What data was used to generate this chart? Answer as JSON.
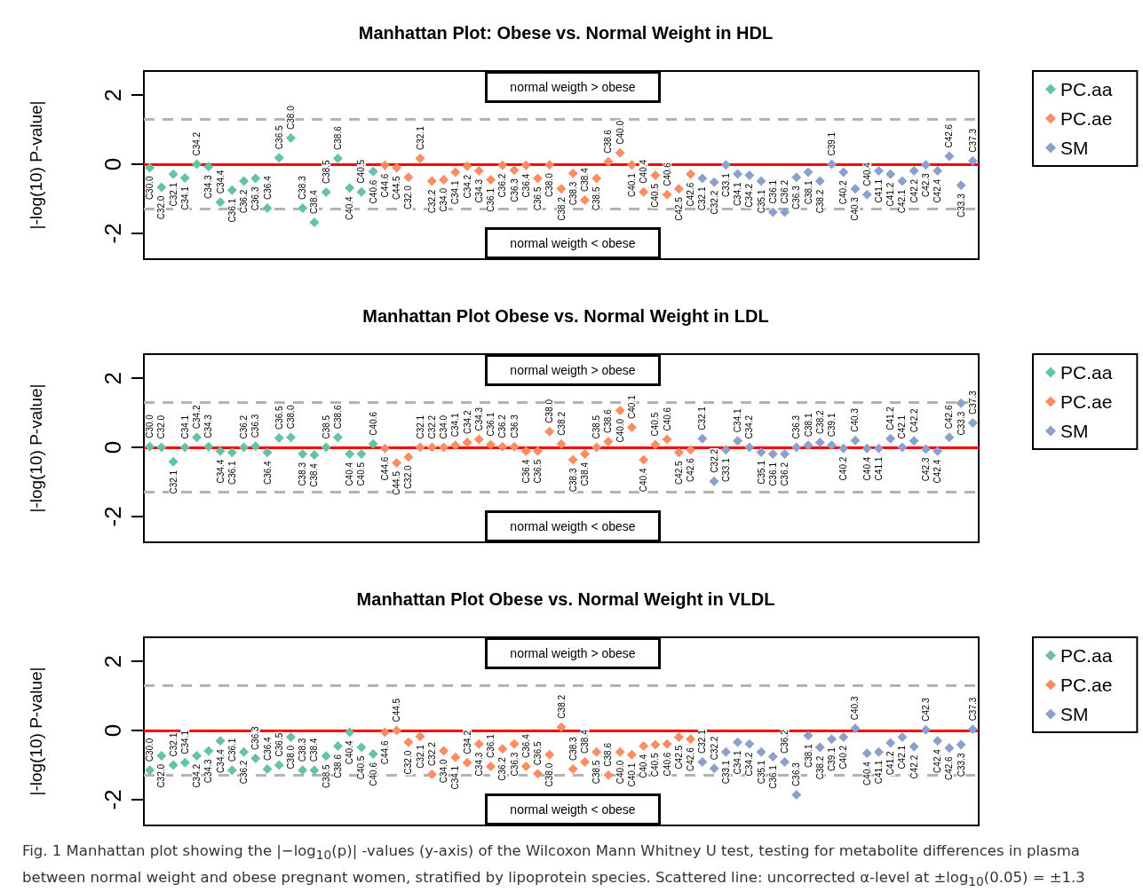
{
  "chart_data": [
    {
      "type": "scatter",
      "title": "Manhattan Plot: Obese vs. Normal Weight in HDL",
      "ylabel": "|-log(10) P-value|",
      "categories": [
        null,
        null,
        null,
        null,
        null,
        null,
        null,
        null,
        null,
        null,
        null,
        null,
        null,
        null,
        null,
        null,
        null,
        null,
        null,
        null,
        null,
        null,
        null,
        null,
        null,
        null,
        null,
        null,
        null,
        null,
        null,
        null,
        null,
        null,
        null,
        null,
        null,
        null,
        null,
        null,
        null,
        null,
        null,
        null,
        null,
        null,
        null,
        null,
        null,
        null,
        null,
        null,
        null,
        null,
        null,
        null,
        null,
        null,
        null,
        null,
        null,
        null,
        null,
        null,
        null,
        null,
        null,
        null,
        null,
        null,
        null
      ],
      "series": [
        {
          "name": "PC.aa",
          "color": "#66c2a5",
          "values": [
            -0.1,
            -0.67,
            -0.29,
            -0.4,
            0.0,
            -0.07,
            -1.1,
            -0.75,
            -0.49,
            -0.41,
            -1.27,
            0.19,
            0.76,
            -1.27,
            -1.68,
            -0.81,
            0.17,
            -0.69,
            -0.8,
            -0.21,
            null,
            null,
            null,
            null,
            null,
            null,
            null,
            null,
            null,
            null,
            null,
            null,
            null,
            null,
            null,
            null,
            null,
            null,
            null,
            null,
            null,
            null,
            null,
            null,
            null,
            null,
            null,
            null,
            null,
            null,
            null,
            null,
            null,
            null,
            null,
            null,
            null,
            null,
            null,
            null,
            null,
            null,
            null,
            null,
            null,
            null,
            null,
            null,
            null,
            null,
            null
          ],
          "value_labels": [
            "C30.0",
            "C32.0",
            "C32.1",
            "C34.1",
            "C34.2",
            "C34.3",
            "C34.4",
            "C36.1",
            "C36.2",
            "C36.3",
            "C36.4",
            "C36.5",
            "C38.0",
            "C38.3",
            "C38.4",
            "C38.5",
            "C38.6",
            "C40.4",
            "C40.5",
            "C40.6",
            null,
            null,
            null,
            null,
            null,
            null,
            null,
            null,
            null,
            null,
            null,
            null,
            null,
            null,
            null,
            null,
            null,
            null,
            null,
            null,
            null,
            null,
            null,
            null,
            null,
            null,
            null,
            null,
            null,
            null,
            null,
            null,
            null,
            null,
            null,
            null,
            null,
            null,
            null,
            null,
            null,
            null,
            null,
            null,
            null,
            null,
            null,
            null,
            null,
            null,
            null
          ]
        },
        {
          "name": "PC.ae",
          "color": "#fc8d62",
          "values": [
            null,
            null,
            null,
            null,
            null,
            null,
            null,
            null,
            null,
            null,
            null,
            null,
            null,
            null,
            null,
            null,
            null,
            null,
            null,
            null,
            -0.03,
            -0.1,
            -0.38,
            0.17,
            -0.49,
            -0.45,
            -0.23,
            -0.06,
            -0.19,
            -0.45,
            -0.03,
            -0.17,
            -0.03,
            -0.41,
            -0.02,
            -0.71,
            -0.26,
            -1.04,
            -0.41,
            0.07,
            0.33,
            -0.02,
            -0.8,
            -0.32,
            -0.88,
            -0.71,
            -0.29,
            null,
            null,
            null,
            null,
            null,
            null,
            null,
            null,
            null,
            null,
            null,
            null,
            null,
            null,
            null,
            null,
            null,
            null,
            null,
            null,
            null,
            null,
            null,
            null
          ],
          "value_labels": [
            null,
            null,
            null,
            null,
            null,
            null,
            null,
            null,
            null,
            null,
            null,
            null,
            null,
            null,
            null,
            null,
            null,
            null,
            null,
            null,
            "C44.6",
            "C44.5",
            "C32.0",
            "C32.1",
            "C32.2",
            "C34.0",
            "C34.1",
            "C34.2",
            "C34.3",
            "C36.1",
            "C36.2",
            "C36.3",
            "C36.4",
            "C36.5",
            "C38.0",
            "C38.2",
            "C38.3",
            "C38.4",
            "C38.5",
            "C38.6",
            "C40.0",
            "C40.1",
            "C40.4",
            "C40.5",
            "C40.6",
            "C42.5",
            "C42.6",
            null,
            null,
            null,
            null,
            null,
            null,
            null,
            null,
            null,
            null,
            null,
            null,
            null,
            null,
            null,
            null,
            null,
            null,
            null,
            null,
            null,
            null,
            null,
            null
          ]
        },
        {
          "name": "SM",
          "color": "#8da0cb",
          "values": [
            null,
            null,
            null,
            null,
            null,
            null,
            null,
            null,
            null,
            null,
            null,
            null,
            null,
            null,
            null,
            null,
            null,
            null,
            null,
            null,
            null,
            null,
            null,
            null,
            null,
            null,
            null,
            null,
            null,
            null,
            null,
            null,
            null,
            null,
            null,
            null,
            null,
            null,
            null,
            null,
            null,
            null,
            null,
            null,
            null,
            null,
            null,
            -0.41,
            -0.52,
            -0.02,
            -0.28,
            -0.32,
            -0.49,
            -1.39,
            -1.39,
            -0.38,
            -0.23,
            -0.49,
            0.0,
            -0.23,
            -0.71,
            -0.88,
            -0.19,
            -0.29,
            -0.49,
            -0.19,
            -0.02,
            -0.19,
            0.23,
            -0.61,
            0.1
          ],
          "value_labels": [
            null,
            null,
            null,
            null,
            null,
            null,
            null,
            null,
            null,
            null,
            null,
            null,
            null,
            null,
            null,
            null,
            null,
            null,
            null,
            null,
            null,
            null,
            null,
            null,
            null,
            null,
            null,
            null,
            null,
            null,
            null,
            null,
            null,
            null,
            null,
            null,
            null,
            null,
            null,
            null,
            null,
            null,
            null,
            null,
            null,
            null,
            null,
            "C32.1",
            "C32.2",
            "C33.1",
            "C34.1",
            "C34.2",
            "C35.1",
            "C36.1",
            "C36.2",
            "C36.3",
            "C38.1",
            "C38.2",
            "C39.1",
            "C40.2",
            "C40.3",
            "C40.4",
            "C41.1",
            "C41.2",
            "C42.1",
            "C42.2",
            "C42.3",
            "C42.4",
            "C42.6",
            "C33.3",
            "C37.3"
          ]
        }
      ],
      "ylim": [
        -2.75,
        2.7
      ],
      "yticks": [
        -2,
        0,
        2
      ],
      "tick_labels": "y",
      "grid": false,
      "legend": "right",
      "marker": "diamond",
      "ref_lines": [
        {
          "axis": "y",
          "value": 0,
          "color": "#ff0000",
          "line_style": "solid"
        },
        {
          "axis": "y",
          "value": 1.3,
          "color": "#b3b3b3",
          "line_style": "dashed"
        },
        {
          "axis": "y",
          "value": -1.3,
          "color": "#b3b3b3",
          "line_style": "dashed"
        }
      ],
      "annotations": [
        "normal weigth > obese",
        "normal weigth < obese"
      ]
    },
    {
      "type": "scatter",
      "title": "Manhattan Plot Obese vs. Normal Weight in LDL",
      "ylabel": "|-log(10) P-value|",
      "categories": [
        null,
        null,
        null,
        null,
        null,
        null,
        null,
        null,
        null,
        null,
        null,
        null,
        null,
        null,
        null,
        null,
        null,
        null,
        null,
        null,
        null,
        null,
        null,
        null,
        null,
        null,
        null,
        null,
        null,
        null,
        null,
        null,
        null,
        null,
        null,
        null,
        null,
        null,
        null,
        null,
        null,
        null,
        null,
        null,
        null,
        null,
        null,
        null,
        null,
        null,
        null,
        null,
        null,
        null,
        null,
        null,
        null,
        null,
        null,
        null,
        null,
        null,
        null,
        null,
        null,
        null,
        null,
        null,
        null,
        null,
        null
      ],
      "series": [
        {
          "name": "PC.aa",
          "color": "#66c2a5",
          "values": [
            0.02,
            0.0,
            -0.42,
            0.0,
            0.29,
            0.02,
            -0.11,
            -0.15,
            0.0,
            0.03,
            -0.15,
            0.27,
            0.29,
            -0.19,
            -0.22,
            0.0,
            0.29,
            -0.19,
            -0.19,
            0.1,
            null,
            null,
            null,
            null,
            null,
            null,
            null,
            null,
            null,
            null,
            null,
            null,
            null,
            null,
            null,
            null,
            null,
            null,
            null,
            null,
            null,
            null,
            null,
            null,
            null,
            null,
            null,
            null,
            null,
            null,
            null,
            null,
            null,
            null,
            null,
            null,
            null,
            null,
            null,
            null,
            null,
            null,
            null,
            null,
            null,
            null,
            null,
            null,
            null,
            null,
            null
          ],
          "value_labels": [
            "C30.0",
            "C32.0",
            "C32.1",
            "C34.1",
            "C34.2",
            "C34.3",
            "C34.4",
            "C36.1",
            "C36.2",
            "C36.3",
            "C36.4",
            "C36.5",
            "C38.0",
            "C38.3",
            "C38.4",
            "C38.5",
            "C38.6",
            "C40.4",
            "C40.5",
            "C40.6",
            null,
            null,
            null,
            null,
            null,
            null,
            null,
            null,
            null,
            null,
            null,
            null,
            null,
            null,
            null,
            null,
            null,
            null,
            null,
            null,
            null,
            null,
            null,
            null,
            null,
            null,
            null,
            null,
            null,
            null,
            null,
            null,
            null,
            null,
            null,
            null,
            null,
            null,
            null,
            null,
            null,
            null,
            null,
            null,
            null,
            null,
            null,
            null,
            null,
            null,
            null
          ]
        },
        {
          "name": "PC.ae",
          "color": "#fc8d62",
          "values": [
            null,
            null,
            null,
            null,
            null,
            null,
            null,
            null,
            null,
            null,
            null,
            null,
            null,
            null,
            null,
            null,
            null,
            null,
            null,
            null,
            -0.03,
            -0.45,
            -0.28,
            0.0,
            0.0,
            0.0,
            0.06,
            0.14,
            0.23,
            0.08,
            0.02,
            0.02,
            -0.11,
            -0.11,
            0.46,
            0.1,
            -0.36,
            -0.19,
            0.0,
            0.17,
            1.07,
            0.58,
            -0.36,
            0.08,
            0.23,
            -0.15,
            -0.07,
            null,
            null,
            null,
            null,
            null,
            null,
            null,
            null,
            null,
            null,
            null,
            null,
            null,
            null,
            null,
            null,
            null,
            null,
            null,
            null,
            null,
            null,
            null,
            null
          ],
          "value_labels": [
            null,
            null,
            null,
            null,
            null,
            null,
            null,
            null,
            null,
            null,
            null,
            null,
            null,
            null,
            null,
            null,
            null,
            null,
            null,
            null,
            "C44.6",
            "C44.5",
            "C32.0",
            "C32.1",
            "C32.2",
            "C34.0",
            "C34.1",
            "C34.2",
            "C34.3",
            "C36.1",
            "C36.2",
            "C36.3",
            "C36.4",
            "C36.5",
            "C38.0",
            "C38.2",
            "C38.3",
            "C38.4",
            "C38.5",
            "C38.6",
            "C40.0",
            "C40.1",
            "C40.4",
            "C40.5",
            "C40.6",
            "C42.5",
            "C42.6",
            null,
            null,
            null,
            null,
            null,
            null,
            null,
            null,
            null,
            null,
            null,
            null,
            null,
            null,
            null,
            null,
            null,
            null,
            null,
            null,
            null,
            null,
            null,
            null
          ]
        },
        {
          "name": "SM",
          "color": "#8da0cb",
          "values": [
            null,
            null,
            null,
            null,
            null,
            null,
            null,
            null,
            null,
            null,
            null,
            null,
            null,
            null,
            null,
            null,
            null,
            null,
            null,
            null,
            null,
            null,
            null,
            null,
            null,
            null,
            null,
            null,
            null,
            null,
            null,
            null,
            null,
            null,
            null,
            null,
            null,
            null,
            null,
            null,
            null,
            null,
            null,
            null,
            null,
            null,
            null,
            0.25,
            -0.98,
            -0.07,
            0.19,
            0.0,
            -0.14,
            -0.19,
            -0.19,
            0.0,
            0.06,
            0.14,
            0.06,
            -0.03,
            0.2,
            -0.03,
            -0.03,
            0.25,
            0.0,
            0.19,
            -0.05,
            -0.11,
            0.29,
            1.28,
            0.71
          ],
          "value_labels": [
            null,
            null,
            null,
            null,
            null,
            null,
            null,
            null,
            null,
            null,
            null,
            null,
            null,
            null,
            null,
            null,
            null,
            null,
            null,
            null,
            null,
            null,
            null,
            null,
            null,
            null,
            null,
            null,
            null,
            null,
            null,
            null,
            null,
            null,
            null,
            null,
            null,
            null,
            null,
            null,
            null,
            null,
            null,
            null,
            null,
            null,
            null,
            "C32.1",
            "C32.2",
            "C33.1",
            "C34.1",
            "C34.2",
            "C35.1",
            "C36.1",
            "C36.2",
            "C36.3",
            "C38.1",
            "C38.2",
            "C39.1",
            "C40.2",
            "C40.3",
            "C40.4",
            "C41.1",
            "C41.2",
            "C42.1",
            "C42.2",
            "C42.3",
            "C42.4",
            "C42.6",
            "C33.3",
            "C37.3"
          ]
        }
      ],
      "ylim": [
        -2.75,
        2.7
      ],
      "yticks": [
        -2,
        0,
        2
      ],
      "tick_labels": "y",
      "grid": false,
      "legend": "right",
      "marker": "diamond",
      "ref_lines": [
        {
          "axis": "y",
          "value": 0,
          "color": "#ff0000",
          "line_style": "solid"
        },
        {
          "axis": "y",
          "value": 1.3,
          "color": "#b3b3b3",
          "line_style": "dashed"
        },
        {
          "axis": "y",
          "value": -1.3,
          "color": "#b3b3b3",
          "line_style": "dashed"
        }
      ],
      "annotations": [
        "normal weigth > obese",
        "normal weigth < obese"
      ]
    },
    {
      "type": "scatter",
      "title": "Manhattan Plot Obese vs. Normal Weight in VLDL",
      "ylabel": "|-log(10) P-value|",
      "categories": [
        null,
        null,
        null,
        null,
        null,
        null,
        null,
        null,
        null,
        null,
        null,
        null,
        null,
        null,
        null,
        null,
        null,
        null,
        null,
        null,
        null,
        null,
        null,
        null,
        null,
        null,
        null,
        null,
        null,
        null,
        null,
        null,
        null,
        null,
        null,
        null,
        null,
        null,
        null,
        null,
        null,
        null,
        null,
        null,
        null,
        null,
        null,
        null,
        null,
        null,
        null,
        null,
        null,
        null,
        null,
        null,
        null,
        null,
        null,
        null,
        null,
        null,
        null,
        null,
        null,
        null,
        null,
        null,
        null,
        null,
        null
      ],
      "series": [
        {
          "name": "PC.aa",
          "color": "#66c2a5",
          "values": [
            -1.15,
            -0.73,
            -1.0,
            -0.93,
            -0.73,
            -0.59,
            -0.3,
            -1.15,
            -0.62,
            -0.81,
            -1.12,
            -1.0,
            -0.19,
            -1.15,
            -1.15,
            -0.74,
            -0.45,
            -0.05,
            -0.49,
            -0.68,
            null,
            null,
            null,
            null,
            null,
            null,
            null,
            null,
            null,
            null,
            null,
            null,
            null,
            null,
            null,
            null,
            null,
            null,
            null,
            null,
            null,
            null,
            null,
            null,
            null,
            null,
            null,
            null,
            null,
            null,
            null,
            null,
            null,
            null,
            null,
            null,
            null,
            null,
            null,
            null,
            null,
            null,
            null,
            null,
            null,
            null,
            null,
            null,
            null,
            null,
            null
          ],
          "value_labels": [
            "C30.0",
            "C32.0",
            "C32.1",
            "C34.1",
            "C34.2",
            "C34.3",
            "C34.4",
            "C36.1",
            "C36.2",
            "C36.3",
            "C36.4",
            "C36.5",
            "C38.0",
            "C38.3",
            "C38.4",
            "C38.5",
            "C38.6",
            "C40.4",
            "C40.5",
            "C40.6",
            null,
            null,
            null,
            null,
            null,
            null,
            null,
            null,
            null,
            null,
            null,
            null,
            null,
            null,
            null,
            null,
            null,
            null,
            null,
            null,
            null,
            null,
            null,
            null,
            null,
            null,
            null,
            null,
            null,
            null,
            null,
            null,
            null,
            null,
            null,
            null,
            null,
            null,
            null,
            null,
            null,
            null,
            null,
            null,
            null,
            null,
            null,
            null,
            null,
            null,
            null
          ]
        },
        {
          "name": "PC.ae",
          "color": "#fc8d62",
          "values": [
            null,
            null,
            null,
            null,
            null,
            null,
            null,
            null,
            null,
            null,
            null,
            null,
            null,
            null,
            null,
            null,
            null,
            null,
            null,
            null,
            -0.05,
            0.0,
            -0.34,
            -0.17,
            -1.27,
            -0.59,
            -0.78,
            -0.93,
            -0.39,
            -1.04,
            -0.53,
            -0.39,
            -1.04,
            -1.25,
            -0.7,
            0.1,
            -1.12,
            -0.91,
            -0.62,
            -1.29,
            -0.62,
            -0.7,
            -0.45,
            -0.41,
            -0.39,
            -0.19,
            -0.25,
            null,
            null,
            null,
            null,
            null,
            null,
            null,
            null,
            null,
            null,
            null,
            null,
            null,
            null,
            null,
            null,
            null,
            null,
            null,
            null,
            null,
            null,
            null,
            null
          ],
          "value_labels": [
            null,
            null,
            null,
            null,
            null,
            null,
            null,
            null,
            null,
            null,
            null,
            null,
            null,
            null,
            null,
            null,
            null,
            null,
            null,
            null,
            "C44.6",
            "C44.5",
            "C32.0",
            "C32.1",
            "C32.2",
            "C34.0",
            "C34.1",
            "C34.2",
            "C34.3",
            "C36.1",
            "C36.2",
            "C36.3",
            "C36.4",
            "C36.5",
            "C38.0",
            "C38.2",
            "C38.3",
            "C38.4",
            "C38.5",
            "C38.6",
            "C40.0",
            "C40.1",
            "C40.4",
            "C40.5",
            "C40.6",
            "C42.5",
            "C42.6",
            null,
            null,
            null,
            null,
            null,
            null,
            null,
            null,
            null,
            null,
            null,
            null,
            null,
            null,
            null,
            null,
            null,
            null,
            null,
            null,
            null,
            null,
            null,
            null
          ]
        },
        {
          "name": "SM",
          "color": "#8da0cb",
          "values": [
            null,
            null,
            null,
            null,
            null,
            null,
            null,
            null,
            null,
            null,
            null,
            null,
            null,
            null,
            null,
            null,
            null,
            null,
            null,
            null,
            null,
            null,
            null,
            null,
            null,
            null,
            null,
            null,
            null,
            null,
            null,
            null,
            null,
            null,
            null,
            null,
            null,
            null,
            null,
            null,
            null,
            null,
            null,
            null,
            null,
            null,
            null,
            -0.91,
            -1.1,
            -0.62,
            -0.34,
            -0.39,
            -0.62,
            -0.76,
            -0.91,
            -1.86,
            -0.15,
            -0.49,
            -0.25,
            -0.19,
            0.06,
            -0.66,
            -0.62,
            -0.36,
            -0.19,
            -0.47,
            0.02,
            -0.3,
            -0.51,
            -0.41,
            0.03
          ],
          "value_labels": [
            null,
            null,
            null,
            null,
            null,
            null,
            null,
            null,
            null,
            null,
            null,
            null,
            null,
            null,
            null,
            null,
            null,
            null,
            null,
            null,
            null,
            null,
            null,
            null,
            null,
            null,
            null,
            null,
            null,
            null,
            null,
            null,
            null,
            null,
            null,
            null,
            null,
            null,
            null,
            null,
            null,
            null,
            null,
            null,
            null,
            null,
            null,
            "C32.1",
            "C32.2",
            "C33.1",
            "C34.1",
            "C34.2",
            "C35.1",
            "C36.1",
            "C36.2",
            "C36.3",
            "C38.1",
            "C38.2",
            "C39.1",
            "C40.2",
            "C40.3",
            "C40.4",
            "C41.1",
            "C41.2",
            "C42.1",
            "C42.2",
            "C42.3",
            "C42.4",
            "C42.6",
            "C33.3",
            "C37.3"
          ]
        }
      ],
      "ylim": [
        -2.75,
        2.7
      ],
      "yticks": [
        -2,
        0,
        2
      ],
      "tick_labels": "y",
      "grid": false,
      "legend": "right",
      "marker": "diamond",
      "ref_lines": [
        {
          "axis": "y",
          "value": 0,
          "color": "#ff0000",
          "line_style": "solid"
        },
        {
          "axis": "y",
          "value": 1.3,
          "color": "#b3b3b3",
          "line_style": "dashed"
        },
        {
          "axis": "y",
          "value": -1.3,
          "color": "#b3b3b3",
          "line_style": "dashed"
        }
      ],
      "annotations": [
        "normal weigth > obese",
        "normal weigth < obese",
        "Fig. 1 Manhattan plot showing the |−log$_{10}$(p)| -values (y-axis) of the Wilcoxon Mann Whitney U test, testing for metabolite differences in plasma between normal weight and obese pregnant women, stratified by lipoprotein species. Scattered line: uncorrected α-level at ±log$_{10}$(0.05) = ±1.3"
      ]
    }
  ]
}
